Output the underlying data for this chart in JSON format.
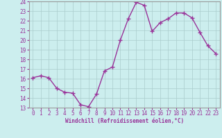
{
  "x": [
    0,
    1,
    2,
    3,
    4,
    5,
    6,
    7,
    8,
    9,
    10,
    11,
    12,
    13,
    14,
    15,
    16,
    17,
    18,
    19,
    20,
    21,
    22,
    23
  ],
  "y": [
    16.1,
    16.3,
    16.1,
    15.0,
    14.6,
    14.5,
    13.3,
    13.1,
    14.4,
    16.8,
    17.2,
    20.0,
    22.2,
    23.9,
    23.6,
    20.9,
    21.8,
    22.2,
    22.8,
    22.8,
    22.3,
    20.8,
    19.4,
    18.6
  ],
  "line_color": "#993399",
  "marker": "D",
  "marker_size": 2.0,
  "bg_color": "#cceeee",
  "grid_color": "#aacccc",
  "xlabel": "Windchill (Refroidissement éolien,°C)",
  "xlabel_color": "#993399",
  "tick_color": "#993399",
  "spine_color": "#999999",
  "ylim": [
    13,
    24
  ],
  "yticks": [
    13,
    14,
    15,
    16,
    17,
    18,
    19,
    20,
    21,
    22,
    23,
    24
  ],
  "xticks": [
    0,
    1,
    2,
    3,
    4,
    5,
    6,
    7,
    8,
    9,
    10,
    11,
    12,
    13,
    14,
    15,
    16,
    17,
    18,
    19,
    20,
    21,
    22,
    23
  ],
  "linewidth": 1.0,
  "tick_fontsize": 5.5,
  "xlabel_fontsize": 5.5
}
